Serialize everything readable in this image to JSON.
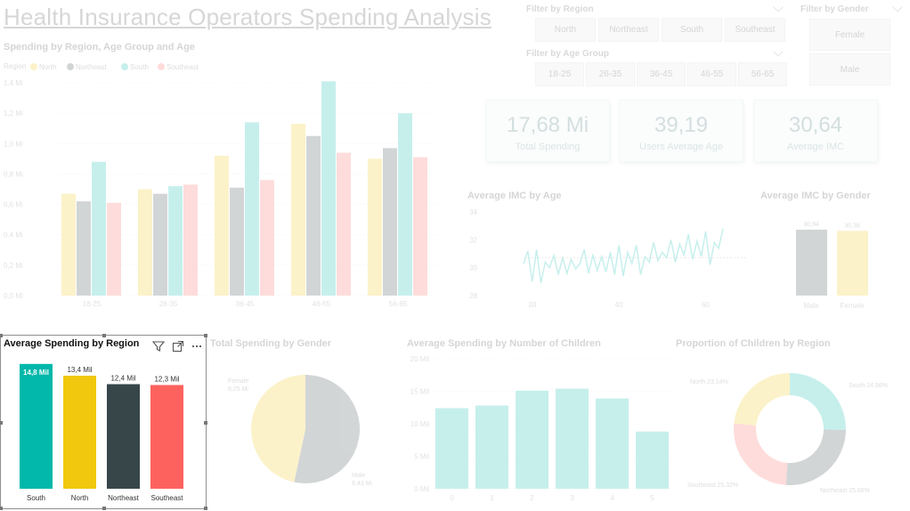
{
  "report_title": "Health Insurance Operators Spending Analysis",
  "filters": {
    "region": {
      "title": "Filter by Region",
      "options": [
        "North",
        "Northeast",
        "South",
        "Southeast"
      ]
    },
    "age_group": {
      "title": "Filter by Age Group",
      "options": [
        "18-25",
        "26-35",
        "36-45",
        "46-55",
        "56-65"
      ]
    },
    "gender": {
      "title": "Filter by Gender",
      "options": [
        "Female",
        "Male"
      ]
    }
  },
  "cards": [
    {
      "value": "17,68 Mi",
      "label": "Total Spending"
    },
    {
      "value": "39,19",
      "label": "Users Average Age"
    },
    {
      "value": "30,64",
      "label": "Average IMC"
    }
  ],
  "colors": {
    "north": "#F2C80F",
    "northeast": "#374649",
    "south": "#01B8AA",
    "southeast": "#FD625E",
    "female": "#F2C80F",
    "male": "#374649",
    "teal": "#01B8AA"
  },
  "visuals": {
    "spending_region_age": "Spending by Region, Age Group and Age",
    "imc_by_age": "Average IMC by Age",
    "imc_by_gender": "Average IMC by Gender",
    "total_by_gender": "Total Spending by Gender",
    "avg_by_children": "Average Spending by Number of Children",
    "children_by_region": "Proportion of Children by Region",
    "avg_by_region": "Average Spending by Region"
  },
  "chart_data": [
    {
      "type": "bar",
      "title": "Spending by Region, Age Group and Age",
      "legend_title": "Region",
      "categories": [
        "18-25",
        "26-35",
        "36-45",
        "46-55",
        "56-65"
      ],
      "y_ticks": [
        "0,0 Mi",
        "0,2 Mi",
        "0,4 Mi",
        "0,6 Mi",
        "0,8 Mi",
        "1,0 Mi",
        "1,2 Mi",
        "1,4 Mi"
      ],
      "ylim": [
        0,
        1.4
      ],
      "series": [
        {
          "name": "North",
          "values": [
            0.67,
            0.7,
            0.92,
            1.13,
            0.9
          ]
        },
        {
          "name": "Northeast",
          "values": [
            0.62,
            0.67,
            0.71,
            1.05,
            0.97
          ]
        },
        {
          "name": "South",
          "values": [
            0.88,
            0.72,
            1.14,
            1.41,
            1.2
          ]
        },
        {
          "name": "Southeast",
          "values": [
            0.61,
            0.73,
            0.76,
            0.94,
            0.91
          ]
        }
      ]
    },
    {
      "type": "line",
      "title": "Average IMC by Age",
      "x_ticks": [
        "20",
        "40",
        "60"
      ],
      "y_ticks": [
        "28",
        "30",
        "32",
        "34"
      ],
      "xlim": [
        18,
        64
      ],
      "ylim": [
        28,
        34
      ],
      "x": [
        18,
        19,
        20,
        21,
        22,
        23,
        24,
        25,
        26,
        27,
        28,
        29,
        30,
        31,
        32,
        33,
        34,
        35,
        36,
        37,
        38,
        39,
        40,
        41,
        42,
        43,
        44,
        45,
        46,
        47,
        48,
        49,
        50,
        51,
        52,
        53,
        54,
        55,
        56,
        57,
        58,
        59,
        60,
        61,
        62,
        63,
        64
      ],
      "values": [
        30.3,
        31.2,
        29.0,
        31.3,
        28.9,
        30.4,
        30.0,
        30.9,
        29.5,
        30.7,
        29.6,
        30.6,
        29.9,
        30.3,
        31.3,
        29.6,
        30.9,
        29.8,
        30.8,
        29.7,
        31.1,
        29.5,
        31.6,
        29.4,
        31.1,
        30.3,
        31.6,
        29.5,
        30.8,
        30.4,
        31.8,
        30.5,
        31.1,
        30.7,
        32.0,
        30.4,
        31.7,
        30.9,
        32.4,
        30.6,
        31.9,
        30.8,
        32.6,
        30.2,
        31.8,
        31.4,
        32.8
      ]
    },
    {
      "type": "bar",
      "title": "Average IMC by Gender",
      "categories": [
        "Male",
        "Female"
      ],
      "values": [
        30.94,
        30.38
      ],
      "data_labels": [
        "30,94",
        "30,38"
      ]
    },
    {
      "type": "pie",
      "title": "Total Spending by Gender",
      "labels": [
        "Male",
        "Female"
      ],
      "values": [
        9.43,
        8.25
      ],
      "data_labels": [
        "9,43 Mi",
        "8,25 Mi"
      ]
    },
    {
      "type": "bar",
      "title": "Average Spending by Number of Children",
      "categories": [
        "0",
        "1",
        "2",
        "3",
        "4",
        "5"
      ],
      "values": [
        12.4,
        12.8,
        15.1,
        15.4,
        13.9,
        8.8
      ],
      "y_ticks": [
        "0 Mil",
        "5 Mil",
        "10 Mil",
        "15 Mil",
        "20 Mil"
      ],
      "ylim": [
        0,
        20
      ]
    },
    {
      "type": "pie",
      "title": "Proportion of Children by Region",
      "labels": [
        "South",
        "Northeast",
        "Southeast",
        "North"
      ],
      "values": [
        24.98,
        25.66,
        25.32,
        23.14
      ],
      "data_labels": [
        "South 24.98%",
        "Northeast 25.66%",
        "Southeast 25.32%",
        "North 23.14%"
      ]
    },
    {
      "type": "bar",
      "title": "Average Spending by Region",
      "categories": [
        "South",
        "North",
        "Northeast",
        "Southeast"
      ],
      "values": [
        14.8,
        13.4,
        12.4,
        12.3
      ],
      "data_labels": [
        "14,8 Mil",
        "13,4 Mil",
        "12,4 Mil",
        "12,3 Mil"
      ],
      "ylim": [
        0,
        15.2
      ]
    }
  ]
}
